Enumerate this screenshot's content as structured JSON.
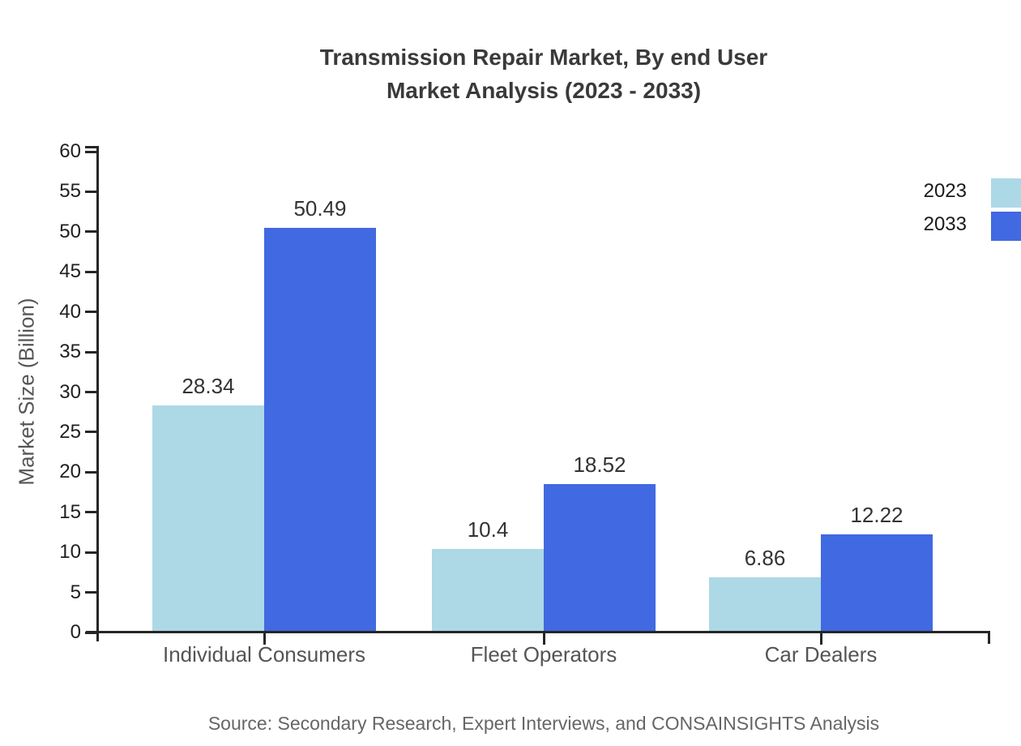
{
  "title": {
    "line1": "Transmission Repair Market, By end User",
    "line2": "Market Analysis (2023 - 2033)"
  },
  "source_note": "Source: Secondary Research, Expert Interviews, and CONSAINSIGHTS Analysis",
  "chart_data": {
    "type": "bar",
    "title": "Transmission Repair Market, By end User Market Analysis (2023 - 2033)",
    "categories": [
      "Individual Consumers",
      "Fleet Operators",
      "Car Dealers"
    ],
    "series": [
      {
        "name": "2023",
        "color": "#ADD8E6",
        "values": [
          28.34,
          10.4,
          6.86
        ]
      },
      {
        "name": "2033",
        "color": "#4169E1",
        "values": [
          50.49,
          18.52,
          12.22
        ]
      }
    ],
    "ylabel": "Market Size (Billion)",
    "xlabel": "",
    "ylim": [
      0,
      60
    ],
    "ytick_step": 5,
    "yticks": [
      0,
      5,
      10,
      15,
      20,
      25,
      30,
      35,
      40,
      45,
      50,
      55,
      60
    ],
    "grid": false,
    "value_labels_shown": true,
    "legend_position": "upper right, swatches clipped at right image edge"
  },
  "colors": {
    "background": "#FFFFFF",
    "axis": "#262626",
    "title_text": "#3A3A3A",
    "tick_label_text": "#1F1F1F",
    "category_label_text": "#555555",
    "value_label_text": "#333333",
    "ylabel_text": "#555555",
    "legend_text": "#1A1A1A",
    "source_text": "#666666"
  }
}
